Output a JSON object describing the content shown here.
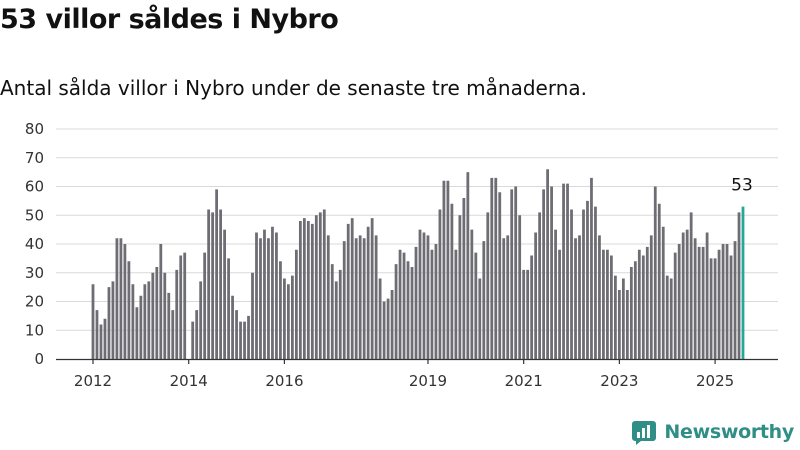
{
  "title": "53 villor såldes i Nybro",
  "subtitle": "Antal sålda villor i Nybro under de senaste tre månaderna.",
  "brand": {
    "name": "Newsworthy",
    "color": "#2f8f86"
  },
  "colors": {
    "bar": "#6e6d74",
    "highlight": "#27a69a",
    "grid": "#d9d9d9",
    "axis": "#333333"
  },
  "chart_data": {
    "type": "bar",
    "title": "",
    "xlabel": "",
    "ylabel": "",
    "ylim": [
      0,
      80
    ],
    "yticks": [
      0,
      10,
      20,
      30,
      40,
      50,
      60,
      70,
      80
    ],
    "xticks": [
      "2012",
      "2014",
      "2016",
      "2019",
      "2021",
      "2023",
      "2025"
    ],
    "grid": true,
    "annotation": {
      "label": "53",
      "value": 53,
      "category": "2025-08"
    },
    "categories": [
      "2012-01",
      "2012-02",
      "2012-03",
      "2012-04",
      "2012-05",
      "2012-06",
      "2012-07",
      "2012-08",
      "2012-09",
      "2012-10",
      "2012-11",
      "2012-12",
      "2013-01",
      "2013-02",
      "2013-03",
      "2013-04",
      "2013-05",
      "2013-06",
      "2013-07",
      "2013-08",
      "2013-09",
      "2013-10",
      "2013-11",
      "2013-12",
      "2014-01",
      "2014-02",
      "2014-03",
      "2014-04",
      "2014-05",
      "2014-06",
      "2014-07",
      "2014-08",
      "2014-09",
      "2014-10",
      "2014-11",
      "2014-12",
      "2015-01",
      "2015-02",
      "2015-03",
      "2015-04",
      "2015-05",
      "2015-06",
      "2015-07",
      "2015-08",
      "2015-09",
      "2015-10",
      "2015-11",
      "2015-12",
      "2016-01",
      "2016-02",
      "2016-03",
      "2016-04",
      "2016-05",
      "2016-06",
      "2016-07",
      "2016-08",
      "2016-09",
      "2016-10",
      "2016-11",
      "2016-12",
      "2017-01",
      "2017-02",
      "2017-03",
      "2017-04",
      "2017-05",
      "2017-06",
      "2017-07",
      "2017-08",
      "2017-09",
      "2017-10",
      "2017-11",
      "2017-12",
      "2018-01",
      "2018-02",
      "2018-03",
      "2018-04",
      "2018-05",
      "2018-06",
      "2018-07",
      "2018-08",
      "2018-09",
      "2018-10",
      "2018-11",
      "2018-12",
      "2019-01",
      "2019-02",
      "2019-03",
      "2019-04",
      "2019-05",
      "2019-06",
      "2019-07",
      "2019-08",
      "2019-09",
      "2019-10",
      "2019-11",
      "2019-12",
      "2020-01",
      "2020-02",
      "2020-03",
      "2020-04",
      "2020-05",
      "2020-06",
      "2020-07",
      "2020-08",
      "2020-09",
      "2020-10",
      "2020-11",
      "2020-12",
      "2021-01",
      "2021-02",
      "2021-03",
      "2021-04",
      "2021-05",
      "2021-06",
      "2021-07",
      "2021-08",
      "2021-09",
      "2021-10",
      "2021-11",
      "2021-12",
      "2022-01",
      "2022-02",
      "2022-03",
      "2022-04",
      "2022-05",
      "2022-06",
      "2022-07",
      "2022-08",
      "2022-09",
      "2022-10",
      "2022-11",
      "2022-12",
      "2023-01",
      "2023-02",
      "2023-03",
      "2023-04",
      "2023-05",
      "2023-06",
      "2023-07",
      "2023-08",
      "2023-09",
      "2023-10",
      "2023-11",
      "2023-12",
      "2024-01",
      "2024-02",
      "2024-03",
      "2024-04",
      "2024-05",
      "2024-06",
      "2024-07",
      "2024-08",
      "2024-09",
      "2024-10",
      "2024-11",
      "2024-12",
      "2025-01",
      "2025-02",
      "2025-03",
      "2025-04",
      "2025-05",
      "2025-06",
      "2025-07",
      "2025-08"
    ],
    "values": [
      26,
      17,
      12,
      14,
      25,
      27,
      42,
      42,
      40,
      34,
      26,
      18,
      22,
      26,
      27,
      30,
      32,
      40,
      30,
      23,
      17,
      31,
      36,
      37,
      null,
      13,
      17,
      27,
      37,
      52,
      51,
      59,
      52,
      45,
      35,
      22,
      17,
      13,
      13,
      15,
      30,
      44,
      42,
      45,
      42,
      46,
      44,
      34,
      28,
      26,
      29,
      38,
      48,
      49,
      48,
      47,
      50,
      51,
      52,
      43,
      33,
      27,
      31,
      41,
      47,
      49,
      42,
      43,
      42,
      46,
      49,
      43,
      28,
      20,
      21,
      24,
      33,
      38,
      37,
      34,
      32,
      39,
      45,
      44,
      43,
      38,
      40,
      52,
      62,
      62,
      54,
      38,
      50,
      56,
      65,
      45,
      37,
      28,
      41,
      51,
      63,
      63,
      58,
      42,
      43,
      59,
      60,
      50,
      31,
      31,
      36,
      44,
      51,
      59,
      66,
      60,
      45,
      38,
      61,
      61,
      52,
      42,
      43,
      52,
      55,
      63,
      53,
      43,
      38,
      38,
      36,
      29,
      24,
      28,
      24,
      32,
      34,
      38,
      36,
      39,
      43,
      60,
      54,
      46,
      29,
      28,
      37,
      40,
      44,
      45,
      51,
      42,
      39,
      39,
      44,
      35,
      35,
      38,
      40,
      40,
      36,
      41,
      51,
      53
    ]
  }
}
